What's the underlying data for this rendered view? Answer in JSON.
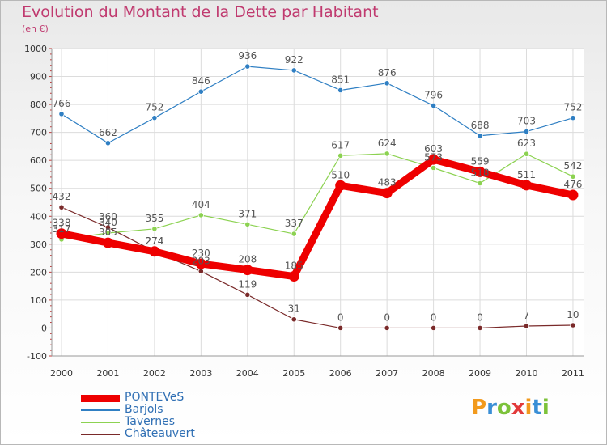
{
  "title": "Evolution du Montant de la Dette par Habitant",
  "subtitle": "(en €)",
  "logo": {
    "letters": [
      "P",
      "r",
      "o",
      "x",
      "i",
      "t",
      "i"
    ],
    "colors": [
      "#f29a1d",
      "#3a8fd6",
      "#7cc23a",
      "#e23a3a",
      "#f29a1d",
      "#3a8fd6",
      "#7cc23a"
    ]
  },
  "chart_data": {
    "type": "line",
    "x": [
      "2000",
      "2001",
      "2002",
      "2003",
      "2004",
      "2005",
      "2006",
      "2007",
      "2008",
      "2009",
      "2010",
      "2011"
    ],
    "ylim": [
      -100,
      1000
    ],
    "yticks": [
      "-100",
      "0",
      "100",
      "200",
      "300",
      "400",
      "500",
      "600",
      "700",
      "800",
      "900",
      "1000"
    ],
    "grid": true,
    "legend_position": "bottom-left",
    "series": [
      {
        "name": "PONTEVeS",
        "color": "#ee0000",
        "values": [
          338,
          305,
          274,
          230,
          208,
          185,
          510,
          483,
          603,
          559,
          511,
          476
        ],
        "labels": [
          "338",
          "305",
          "274",
          "230",
          "208",
          "185",
          "510",
          "483",
          "603",
          "559",
          "511",
          "476"
        ]
      },
      {
        "name": "Barjols",
        "color": "#2f7fc3",
        "values": [
          766,
          662,
          752,
          846,
          936,
          922,
          851,
          876,
          796,
          688,
          703,
          752
        ],
        "labels": [
          "766",
          "662",
          "752",
          "846",
          "936",
          "922",
          "851",
          "876",
          "796",
          "688",
          "703",
          "752"
        ]
      },
      {
        "name": "Tavernes",
        "color": "#8cd251",
        "values": [
          317,
          340,
          355,
          404,
          371,
          337,
          617,
          624,
          573,
          518,
          623,
          542
        ],
        "labels": [
          "317",
          "340",
          "355",
          "404",
          "371",
          "337",
          "617",
          "624",
          "573",
          "518",
          "623",
          "542"
        ]
      },
      {
        "name": "Châteauvert",
        "color": "#7a2a2a",
        "values": [
          432,
          360,
          274,
          203,
          119,
          31,
          0,
          0,
          0,
          0,
          7,
          10
        ],
        "labels": [
          "432",
          "360",
          "274",
          "203",
          "119",
          "31",
          "0",
          "0",
          "0",
          "0",
          "7",
          "10"
        ]
      }
    ]
  }
}
